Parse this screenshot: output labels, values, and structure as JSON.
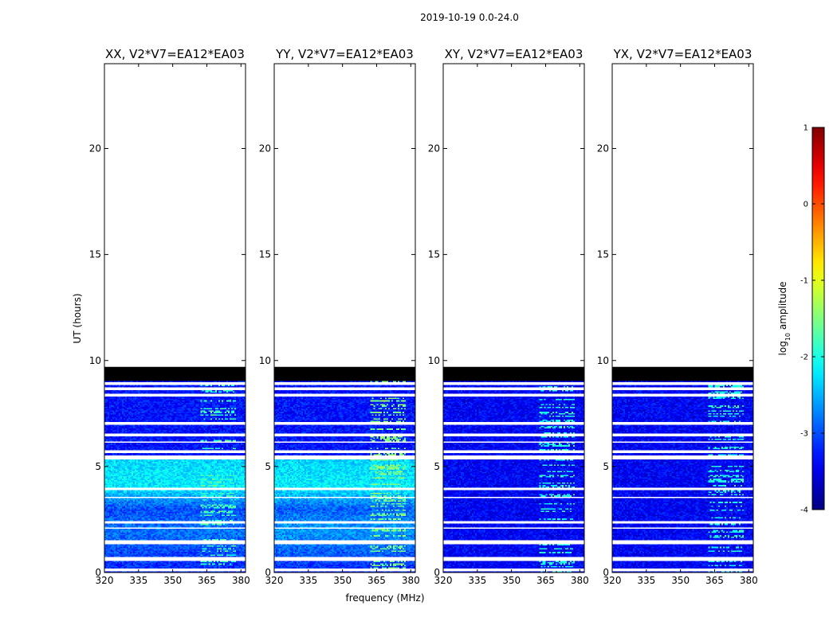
{
  "chart_data": {
    "type": "heatmap",
    "suptitle": "2019-10-19 0.0-24.0",
    "xlabel": "frequency (MHz)",
    "ylabel": "UT (hours)",
    "xlim": [
      320,
      382
    ],
    "ylim": [
      0,
      24
    ],
    "xticks": [
      320,
      335,
      350,
      365,
      380
    ],
    "yticks": [
      0,
      5,
      10,
      15,
      20
    ],
    "colorbar": {
      "label_prefix": "log",
      "label_sub": "10",
      "label_suffix": " amplitude",
      "range": [
        -4,
        1
      ],
      "ticks": [
        1,
        0,
        -1,
        -2,
        -3,
        -4
      ],
      "colormap": "jet"
    },
    "panels": [
      {
        "title": "XX, V2*V7=EA12*EA03"
      },
      {
        "title": "YY, V2*V7=EA12*EA03"
      },
      {
        "title": "XY, V2*V7=EA12*EA03"
      },
      {
        "title": "YX, V2*V7=EA12*EA03"
      }
    ],
    "data_extent_hours": [
      0,
      9.7
    ],
    "flagged_bands_hours": [
      [
        0.05,
        0.2
      ],
      [
        0.55,
        0.75
      ],
      [
        1.35,
        1.5
      ],
      [
        2.05,
        2.12
      ],
      [
        2.3,
        2.4
      ],
      [
        3.5,
        3.6
      ],
      [
        3.85,
        4.0
      ],
      [
        5.35,
        5.5
      ],
      [
        5.65,
        5.75
      ],
      [
        6.1,
        6.2
      ],
      [
        6.45,
        6.55
      ],
      [
        7.0,
        7.12
      ],
      [
        8.3,
        8.4
      ],
      [
        8.6,
        8.7
      ],
      [
        8.85,
        8.95
      ],
      [
        9.05,
        9.7
      ]
    ],
    "series": [
      {
        "name": "XX",
        "baseline_log10": [
          [
            0,
            -3.2
          ],
          [
            2,
            -2.8
          ],
          [
            3,
            -3.0
          ],
          [
            4,
            -2.2
          ],
          [
            5.3,
            -2.3
          ],
          [
            5.5,
            -3.3
          ],
          [
            9.7,
            -3.3
          ]
        ],
        "rfi_log10": -1.8
      },
      {
        "name": "YY",
        "baseline_log10": [
          [
            0,
            -3.2
          ],
          [
            2,
            -2.6
          ],
          [
            3,
            -2.9
          ],
          [
            4,
            -2.2
          ],
          [
            5.3,
            -2.3
          ],
          [
            5.5,
            -3.3
          ],
          [
            9.7,
            -3.3
          ]
        ],
        "rfi_log10": -1.5
      },
      {
        "name": "XY",
        "baseline_log10": [
          [
            0,
            -3.4
          ],
          [
            9.7,
            -3.4
          ]
        ],
        "rfi_log10": -2.0
      },
      {
        "name": "YX",
        "baseline_log10": [
          [
            0,
            -3.4
          ],
          [
            9.7,
            -3.4
          ]
        ],
        "rfi_log10": -2.0
      }
    ],
    "rfi_band_mhz": [
      362,
      378
    ]
  }
}
